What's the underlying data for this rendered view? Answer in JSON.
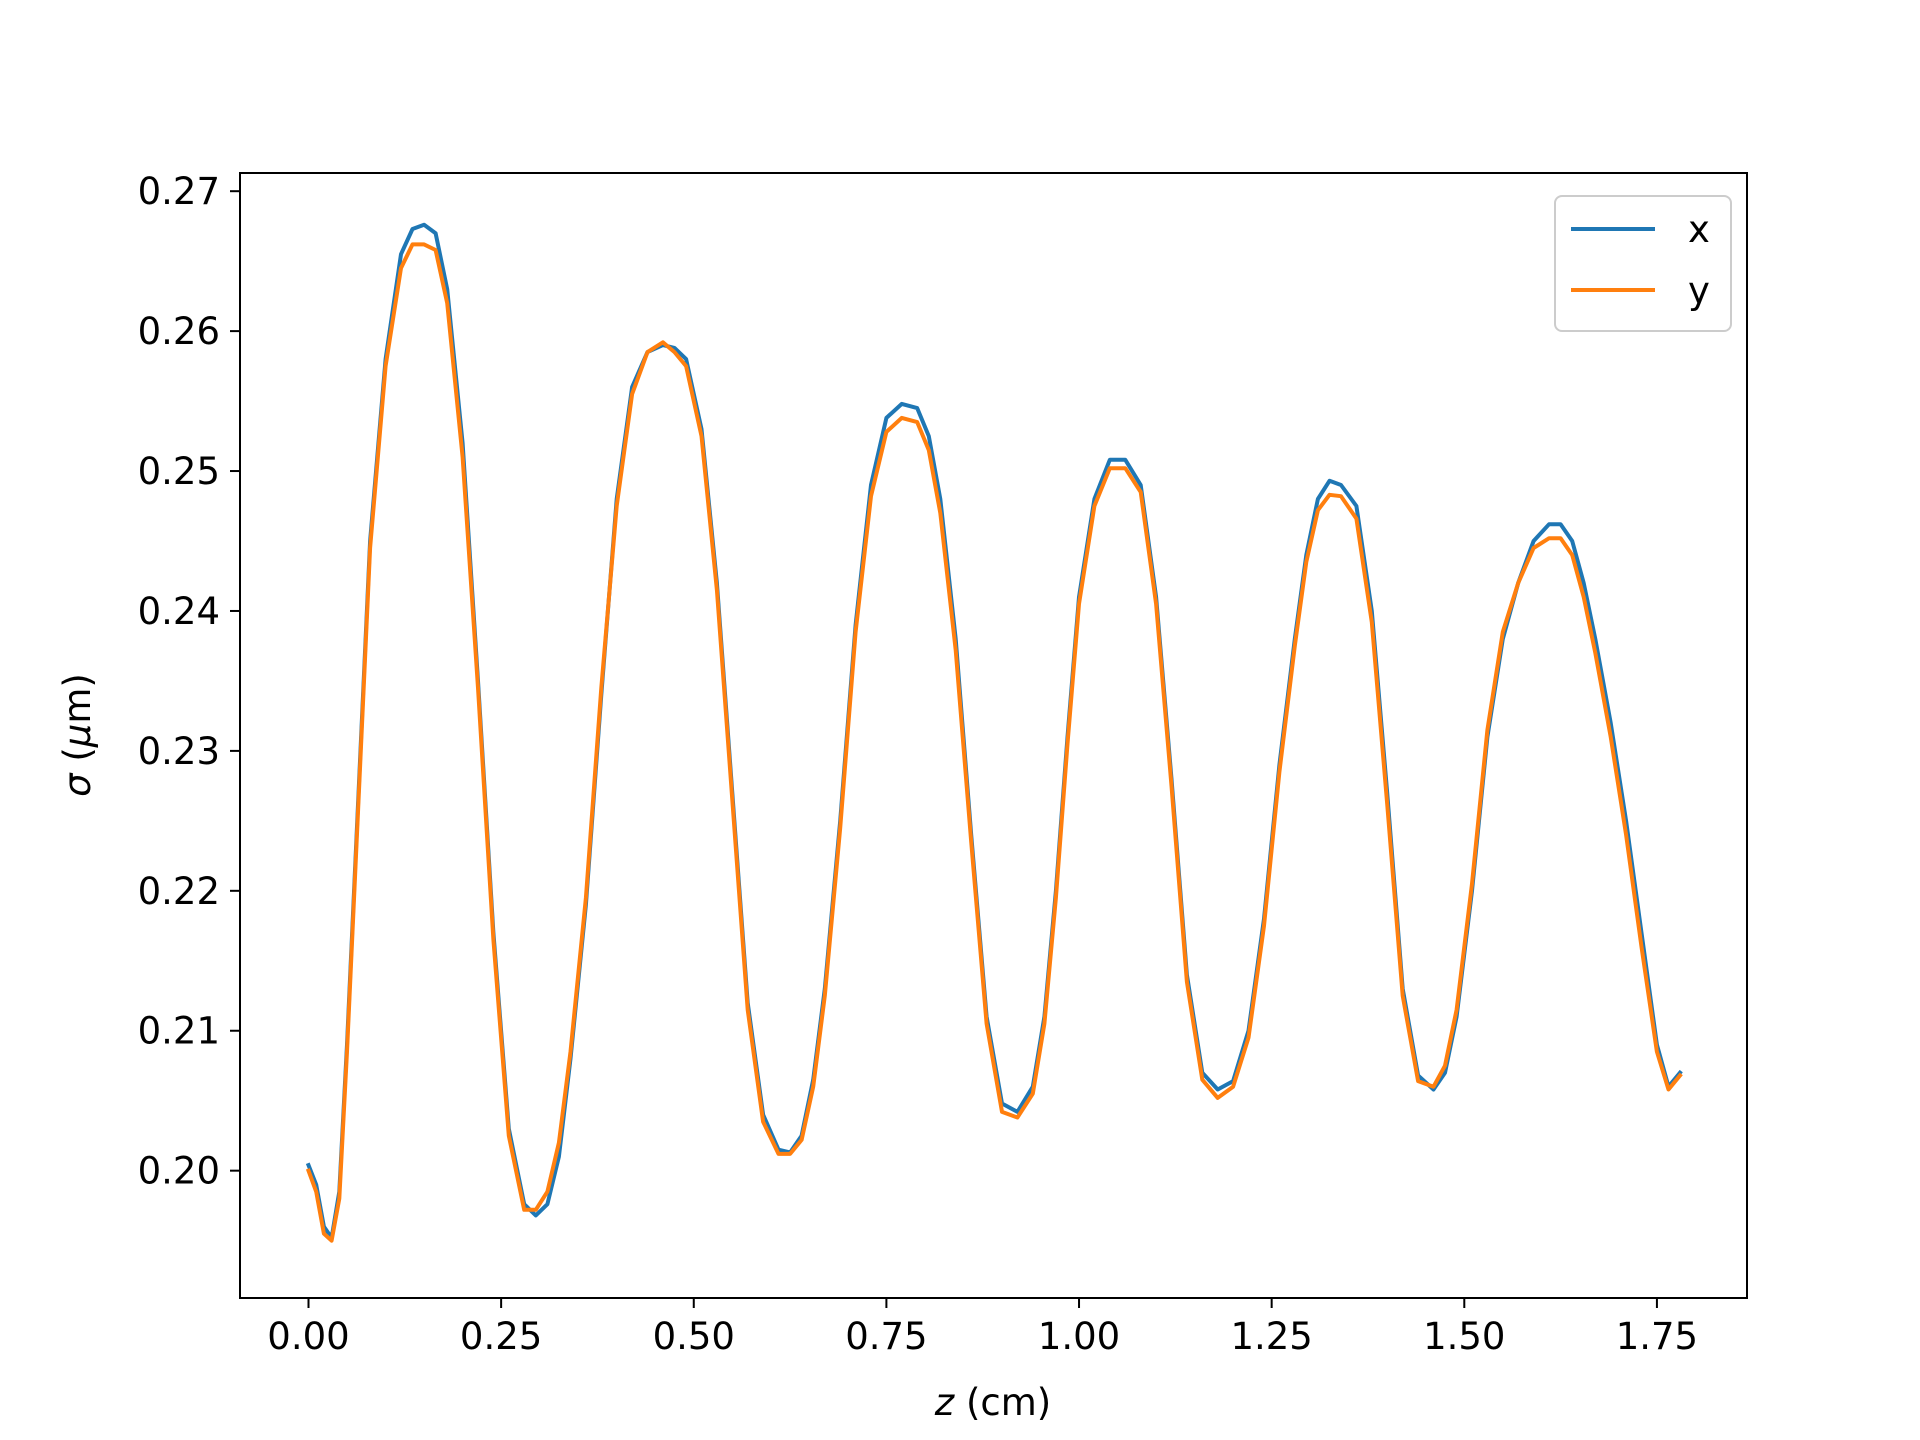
{
  "chart_data": {
    "type": "line",
    "title": "",
    "xlabel": {
      "italic": "z",
      "rest": " (cm)"
    },
    "ylabel": {
      "sigma": "σ",
      "rest1": " (",
      "mu": "μ",
      "rest2": "m)"
    },
    "xlim": [
      -0.0889,
      1.8669
    ],
    "ylim": [
      0.1909,
      0.2713
    ],
    "xticks": [
      0.0,
      0.25,
      0.5,
      0.75,
      1.0,
      1.25,
      1.5,
      1.75
    ],
    "xtick_labels": [
      "0.00",
      "0.25",
      "0.50",
      "0.75",
      "1.00",
      "1.25",
      "1.50",
      "1.75"
    ],
    "yticks": [
      0.2,
      0.21,
      0.22,
      0.23,
      0.24,
      0.25,
      0.26,
      0.27
    ],
    "ytick_labels": [
      "0.20",
      "0.21",
      "0.22",
      "0.23",
      "0.24",
      "0.25",
      "0.26",
      "0.27"
    ],
    "grid": false,
    "legend_position": "top-right",
    "series": [
      {
        "name": "x",
        "color": "#1f77b4",
        "x": [
          0.0,
          0.01,
          0.02,
          0.03,
          0.04,
          0.05,
          0.06,
          0.08,
          0.1,
          0.12,
          0.135,
          0.15,
          0.165,
          0.18,
          0.2,
          0.22,
          0.24,
          0.26,
          0.28,
          0.295,
          0.31,
          0.325,
          0.34,
          0.36,
          0.38,
          0.4,
          0.42,
          0.44,
          0.46,
          0.475,
          0.49,
          0.51,
          0.53,
          0.55,
          0.57,
          0.59,
          0.61,
          0.625,
          0.64,
          0.655,
          0.67,
          0.69,
          0.71,
          0.73,
          0.75,
          0.77,
          0.79,
          0.805,
          0.82,
          0.84,
          0.86,
          0.88,
          0.9,
          0.92,
          0.94,
          0.955,
          0.97,
          0.985,
          1.0,
          1.02,
          1.04,
          1.06,
          1.08,
          1.1,
          1.12,
          1.14,
          1.16,
          1.18,
          1.2,
          1.22,
          1.24,
          1.26,
          1.28,
          1.295,
          1.31,
          1.325,
          1.34,
          1.36,
          1.38,
          1.4,
          1.42,
          1.44,
          1.46,
          1.475,
          1.49,
          1.51,
          1.53,
          1.55,
          1.57,
          1.59,
          1.61,
          1.625,
          1.64,
          1.655,
          1.67,
          1.69,
          1.71,
          1.73,
          1.75,
          1.765,
          1.78
        ],
        "y": [
          0.2004,
          0.199,
          0.196,
          0.1952,
          0.1985,
          0.209,
          0.221,
          0.245,
          0.258,
          0.2655,
          0.2673,
          0.2676,
          0.267,
          0.263,
          0.252,
          0.235,
          0.217,
          0.203,
          0.1976,
          0.1968,
          0.1976,
          0.201,
          0.208,
          0.219,
          0.234,
          0.248,
          0.256,
          0.2585,
          0.259,
          0.2588,
          0.258,
          0.253,
          0.242,
          0.227,
          0.212,
          0.204,
          0.2015,
          0.2013,
          0.2025,
          0.2065,
          0.213,
          0.225,
          0.239,
          0.249,
          0.2538,
          0.2548,
          0.2545,
          0.2525,
          0.248,
          0.238,
          0.224,
          0.211,
          0.2048,
          0.2042,
          0.206,
          0.211,
          0.22,
          0.231,
          0.241,
          0.248,
          0.2508,
          0.2508,
          0.249,
          0.241,
          0.228,
          0.214,
          0.207,
          0.2058,
          0.2064,
          0.21,
          0.218,
          0.229,
          0.238,
          0.244,
          0.248,
          0.2493,
          0.249,
          0.2475,
          0.24,
          0.227,
          0.213,
          0.2068,
          0.2058,
          0.207,
          0.211,
          0.22,
          0.231,
          0.238,
          0.242,
          0.245,
          0.2462,
          0.2462,
          0.245,
          0.242,
          0.238,
          0.232,
          0.225,
          0.217,
          0.209,
          0.206,
          0.207
        ]
      },
      {
        "name": "y",
        "color": "#ff7f0e",
        "x": [
          0.0,
          0.01,
          0.02,
          0.03,
          0.04,
          0.05,
          0.06,
          0.08,
          0.1,
          0.12,
          0.135,
          0.15,
          0.165,
          0.18,
          0.2,
          0.22,
          0.24,
          0.26,
          0.28,
          0.295,
          0.31,
          0.325,
          0.34,
          0.36,
          0.38,
          0.4,
          0.42,
          0.44,
          0.46,
          0.475,
          0.49,
          0.51,
          0.53,
          0.55,
          0.57,
          0.59,
          0.61,
          0.625,
          0.64,
          0.655,
          0.67,
          0.69,
          0.71,
          0.73,
          0.75,
          0.77,
          0.79,
          0.805,
          0.82,
          0.84,
          0.86,
          0.88,
          0.9,
          0.92,
          0.94,
          0.955,
          0.97,
          0.985,
          1.0,
          1.02,
          1.04,
          1.06,
          1.08,
          1.1,
          1.12,
          1.14,
          1.16,
          1.18,
          1.2,
          1.22,
          1.24,
          1.26,
          1.28,
          1.295,
          1.31,
          1.325,
          1.34,
          1.36,
          1.38,
          1.4,
          1.42,
          1.44,
          1.46,
          1.475,
          1.49,
          1.51,
          1.53,
          1.55,
          1.57,
          1.59,
          1.61,
          1.625,
          1.64,
          1.655,
          1.67,
          1.69,
          1.71,
          1.73,
          1.75,
          1.765,
          1.78
        ],
        "y": [
          0.2,
          0.1985,
          0.1955,
          0.195,
          0.198,
          0.2085,
          0.2205,
          0.2445,
          0.2575,
          0.2645,
          0.2662,
          0.2662,
          0.2658,
          0.262,
          0.251,
          0.2345,
          0.2165,
          0.2025,
          0.1972,
          0.1972,
          0.1985,
          0.202,
          0.2085,
          0.2195,
          0.2345,
          0.2475,
          0.2555,
          0.2585,
          0.2592,
          0.2585,
          0.2575,
          0.2525,
          0.2415,
          0.2265,
          0.2115,
          0.2035,
          0.2012,
          0.2012,
          0.2022,
          0.206,
          0.2125,
          0.2245,
          0.2385,
          0.2482,
          0.2528,
          0.2538,
          0.2535,
          0.2515,
          0.247,
          0.2372,
          0.2235,
          0.2105,
          0.2042,
          0.2038,
          0.2055,
          0.2105,
          0.2195,
          0.2305,
          0.2405,
          0.2475,
          0.2502,
          0.2502,
          0.2485,
          0.2405,
          0.2275,
          0.2135,
          0.2065,
          0.2052,
          0.206,
          0.2095,
          0.2175,
          0.2285,
          0.2375,
          0.2435,
          0.2472,
          0.2483,
          0.2482,
          0.2466,
          0.2392,
          0.2262,
          0.2125,
          0.2064,
          0.206,
          0.2075,
          0.2115,
          0.2205,
          0.2315,
          0.2385,
          0.242,
          0.2445,
          0.2452,
          0.2452,
          0.244,
          0.241,
          0.237,
          0.231,
          0.224,
          0.216,
          0.2085,
          0.2058,
          0.2068
        ]
      }
    ]
  }
}
